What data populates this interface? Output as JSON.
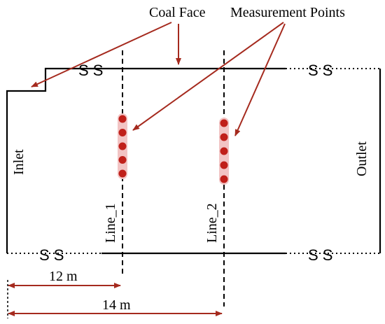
{
  "labels": {
    "coal_face": "Coal Face",
    "measurement_points": "Measurement Points",
    "inlet": "Inlet",
    "outlet": "Outlet",
    "line_1": "Line_1",
    "line_2": "Line_2",
    "dist_12": "12 m",
    "dist_14": "14 m",
    "ss": "S S"
  },
  "colors": {
    "arrow": "#a52a1e",
    "point": "#c0201a",
    "point_halo": "#f2c4c4",
    "outline": "#000000"
  },
  "points": {
    "line_1_count": 5,
    "line_2_count": 5
  }
}
